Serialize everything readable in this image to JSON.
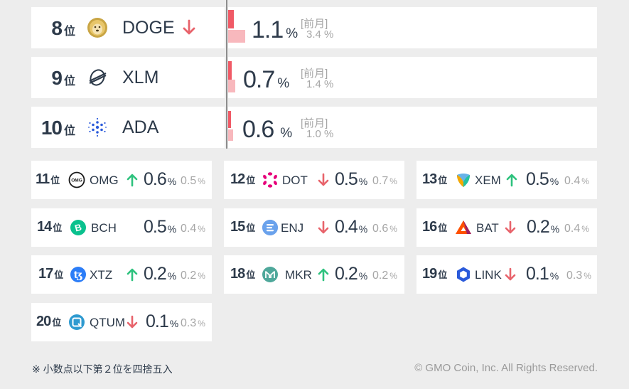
{
  "top_rankings": [
    {
      "rank": "8",
      "rank_suffix": "位",
      "symbol": "DOGE",
      "icon": "doge-icon",
      "trend": "down",
      "value": "1.1",
      "unit": "%",
      "prev_label": "[前月]",
      "prev_value": "3.4 %",
      "share_now": 1.1,
      "share_prev": 3.4
    },
    {
      "rank": "9",
      "rank_suffix": "位",
      "symbol": "XLM",
      "icon": "stellar-icon",
      "trend": "none",
      "value": "0.7",
      "unit": "%",
      "prev_label": "[前月]",
      "prev_value": "1.4 %",
      "share_now": 0.7,
      "share_prev": 1.4
    },
    {
      "rank": "10",
      "rank_suffix": "位",
      "symbol": "ADA",
      "icon": "cardano-icon",
      "trend": "none",
      "value": "0.6",
      "unit": "%",
      "prev_label": "[前月]",
      "prev_value": "1.0 %",
      "share_now": 0.6,
      "share_prev": 1.0
    }
  ],
  "small_rankings": [
    {
      "rank": "11",
      "rank_suffix": "位",
      "symbol": "OMG",
      "icon": "omg-icon",
      "trend": "up",
      "value": "0.6",
      "unit": "%",
      "prev_value": "0.5",
      "prev_unit": "%"
    },
    {
      "rank": "12",
      "rank_suffix": "位",
      "symbol": "DOT",
      "icon": "polkadot-icon",
      "trend": "down",
      "value": "0.5",
      "unit": "%",
      "prev_value": "0.7",
      "prev_unit": "%"
    },
    {
      "rank": "13",
      "rank_suffix": "位",
      "symbol": "XEM",
      "icon": "nem-icon",
      "trend": "up",
      "value": "0.5",
      "unit": "%",
      "prev_value": "0.4",
      "prev_unit": "%"
    },
    {
      "rank": "14",
      "rank_suffix": "位",
      "symbol": "BCH",
      "icon": "bitcoin-cash-icon",
      "trend": "none",
      "value": "0.5",
      "unit": "%",
      "prev_value": "0.4",
      "prev_unit": "%"
    },
    {
      "rank": "15",
      "rank_suffix": "位",
      "symbol": "ENJ",
      "icon": "enjin-icon",
      "trend": "down",
      "value": "0.4",
      "unit": "%",
      "prev_value": "0.6",
      "prev_unit": "%"
    },
    {
      "rank": "16",
      "rank_suffix": "位",
      "symbol": "BAT",
      "icon": "bat-icon",
      "trend": "down",
      "value": "0.2",
      "unit": "%",
      "prev_value": "0.4",
      "prev_unit": "%"
    },
    {
      "rank": "17",
      "rank_suffix": "位",
      "symbol": "XTZ",
      "icon": "tezos-icon",
      "trend": "up",
      "value": "0.2",
      "unit": "%",
      "prev_value": "0.2",
      "prev_unit": "%"
    },
    {
      "rank": "18",
      "rank_suffix": "位",
      "symbol": "MKR",
      "icon": "maker-icon",
      "trend": "up",
      "value": "0.2",
      "unit": "%",
      "prev_value": "0.2",
      "prev_unit": "%"
    },
    {
      "rank": "19",
      "rank_suffix": "位",
      "symbol": "LINK",
      "icon": "chainlink-icon",
      "trend": "down",
      "value": "0.1",
      "unit": "%",
      "prev_value": "0.3",
      "prev_unit": "%"
    },
    {
      "rank": "20",
      "rank_suffix": "位",
      "symbol": "QTUM",
      "icon": "qtum-icon",
      "trend": "down",
      "value": "0.1",
      "unit": "%",
      "prev_value": "0.3",
      "prev_unit": "%"
    }
  ],
  "colors": {
    "up": "#2ec27e",
    "down": "#e8636b",
    "bar_now": "#f05a66",
    "bar_prev": "#f8b8bd"
  },
  "footer": {
    "note": "※ 小数点以下第２位を四捨五入",
    "copyright": "© GMO Coin, Inc. All Rights Reserved."
  }
}
